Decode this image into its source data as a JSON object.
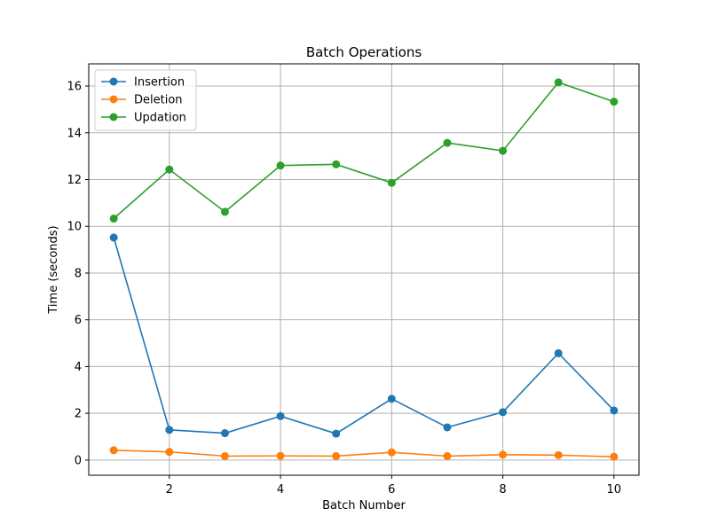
{
  "chart_data": {
    "type": "line",
    "title": "Batch Operations",
    "xlabel": "Batch Number",
    "ylabel": "Time (seconds)",
    "x": [
      1,
      2,
      3,
      4,
      5,
      6,
      7,
      8,
      9,
      10
    ],
    "xlim": [
      0.55,
      10.45
    ],
    "ylim": [
      -0.65,
      16.95
    ],
    "xticks": [
      2,
      4,
      6,
      8,
      10
    ],
    "yticks": [
      0,
      2,
      4,
      6,
      8,
      10,
      12,
      14,
      16
    ],
    "grid": true,
    "legend_position": "top-left",
    "series": [
      {
        "name": "Insertion",
        "color": "#1f77b4",
        "values": [
          9.52,
          1.29,
          1.15,
          1.88,
          1.13,
          2.62,
          1.4,
          2.05,
          4.57,
          2.12
        ]
      },
      {
        "name": "Deletion",
        "color": "#ff7f0e",
        "values": [
          0.42,
          0.35,
          0.17,
          0.18,
          0.17,
          0.33,
          0.17,
          0.23,
          0.21,
          0.14
        ]
      },
      {
        "name": "Updation",
        "color": "#2ca02c",
        "values": [
          10.33,
          12.43,
          10.62,
          12.6,
          12.65,
          11.86,
          13.57,
          13.23,
          16.16,
          15.33
        ]
      }
    ]
  }
}
